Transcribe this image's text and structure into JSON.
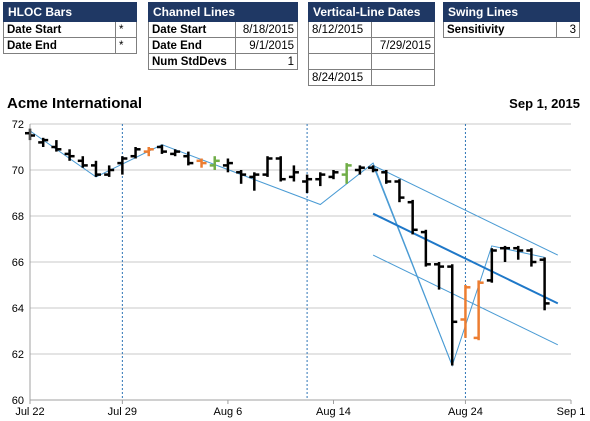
{
  "panels": {
    "hloc": {
      "title": "HLOC Bars",
      "rows": [
        {
          "label": "Date Start",
          "value": "*"
        },
        {
          "label": "Date End",
          "value": "*"
        }
      ]
    },
    "channel": {
      "title": "Channel Lines",
      "rows": [
        {
          "label": "Date Start",
          "value": "8/18/2015"
        },
        {
          "label": "Date End",
          "value": "9/1/2015"
        },
        {
          "label": "Num StdDevs",
          "value": "1"
        }
      ]
    },
    "vlines": {
      "title": "Vertical-Line Dates",
      "cells": [
        [
          "8/12/2015",
          ""
        ],
        [
          "",
          "7/29/2015"
        ],
        [
          "",
          ""
        ],
        [
          "8/24/2015",
          ""
        ]
      ]
    },
    "swing": {
      "title": "Swing Lines",
      "rows": [
        {
          "label": "Sensitivity",
          "value": "3"
        }
      ]
    }
  },
  "chart": {
    "title": "Acme International",
    "date_label": "Sep 1, 2015"
  },
  "chart_data": {
    "type": "ohlc",
    "ylim": [
      60,
      72
    ],
    "yticks": [
      60,
      62,
      64,
      66,
      68,
      70,
      72
    ],
    "xlabels": [
      {
        "day": 0,
        "label": "Jul 22"
      },
      {
        "day": 7,
        "label": "Jul 29"
      },
      {
        "day": 15,
        "label": "Aug 6"
      },
      {
        "day": 23,
        "label": "Aug 14"
      },
      {
        "day": 33,
        "label": "Aug 24"
      },
      {
        "day": 41,
        "label": "Sep 1"
      }
    ],
    "grid": true,
    "vertical_line_days": [
      7,
      21,
      33
    ],
    "colors": {
      "up": "#000000",
      "down": "#000000",
      "orange": "#ed7d31",
      "green": "#70ad47",
      "trend": "#4a9bd4",
      "channel_mid": "#1f78c8",
      "grid": "#c8c8c8",
      "vline": "#2e75b6"
    },
    "bars": [
      {
        "day": 0,
        "open": 71.6,
        "high": 71.8,
        "low": 71.3,
        "close": 71.5,
        "color": "black"
      },
      {
        "day": 1,
        "open": 71.2,
        "high": 71.4,
        "low": 71.0,
        "close": 71.3,
        "color": "black"
      },
      {
        "day": 2,
        "open": 71.0,
        "high": 71.3,
        "low": 70.8,
        "close": 70.9,
        "color": "black"
      },
      {
        "day": 3,
        "open": 70.7,
        "high": 70.9,
        "low": 70.4,
        "close": 70.6,
        "color": "black"
      },
      {
        "day": 4,
        "open": 70.4,
        "high": 70.6,
        "low": 70.1,
        "close": 70.2,
        "color": "black"
      },
      {
        "day": 5,
        "open": 70.2,
        "high": 70.4,
        "low": 69.7,
        "close": 69.8,
        "color": "black"
      },
      {
        "day": 6,
        "open": 69.8,
        "high": 70.2,
        "low": 69.7,
        "close": 70.0,
        "color": "black"
      },
      {
        "day": 7,
        "open": 70.3,
        "high": 70.6,
        "low": 69.8,
        "close": 70.5,
        "color": "black"
      },
      {
        "day": 8,
        "open": 70.6,
        "high": 71.0,
        "low": 70.5,
        "close": 70.9,
        "color": "black"
      },
      {
        "day": 9,
        "open": 70.8,
        "high": 71.0,
        "low": 70.6,
        "close": 70.9,
        "color": "orange"
      },
      {
        "day": 10,
        "open": 71.0,
        "high": 71.1,
        "low": 70.7,
        "close": 70.8,
        "color": "black"
      },
      {
        "day": 11,
        "open": 70.7,
        "high": 70.9,
        "low": 70.6,
        "close": 70.8,
        "color": "black"
      },
      {
        "day": 12,
        "open": 70.6,
        "high": 70.8,
        "low": 70.2,
        "close": 70.3,
        "color": "black"
      },
      {
        "day": 13,
        "open": 70.4,
        "high": 70.5,
        "low": 70.1,
        "close": 70.3,
        "color": "orange"
      },
      {
        "day": 14,
        "open": 70.2,
        "high": 70.6,
        "low": 70.0,
        "close": 70.4,
        "color": "green"
      },
      {
        "day": 15,
        "open": 70.2,
        "high": 70.5,
        "low": 69.9,
        "close": 70.3,
        "color": "black"
      },
      {
        "day": 16,
        "open": 69.9,
        "high": 70.0,
        "low": 69.4,
        "close": 69.8,
        "color": "black"
      },
      {
        "day": 17,
        "open": 69.7,
        "high": 69.9,
        "low": 69.1,
        "close": 69.8,
        "color": "black"
      },
      {
        "day": 18,
        "open": 69.8,
        "high": 70.6,
        "low": 69.7,
        "close": 70.5,
        "color": "black"
      },
      {
        "day": 19,
        "open": 70.5,
        "high": 70.6,
        "low": 69.5,
        "close": 69.6,
        "color": "black"
      },
      {
        "day": 20,
        "open": 69.7,
        "high": 70.2,
        "low": 69.5,
        "close": 69.9,
        "color": "black"
      },
      {
        "day": 21,
        "open": 69.5,
        "high": 69.8,
        "low": 69.0,
        "close": 69.6,
        "color": "black"
      },
      {
        "day": 22,
        "open": 69.6,
        "high": 69.9,
        "low": 69.3,
        "close": 69.8,
        "color": "black"
      },
      {
        "day": 23,
        "open": 69.7,
        "high": 70.0,
        "low": 69.6,
        "close": 69.9,
        "color": "black"
      },
      {
        "day": 24,
        "open": 69.8,
        "high": 70.3,
        "low": 69.4,
        "close": 70.2,
        "color": "green"
      },
      {
        "day": 25,
        "open": 70.0,
        "high": 70.2,
        "low": 69.8,
        "close": 70.1,
        "color": "black"
      },
      {
        "day": 26,
        "open": 70.1,
        "high": 70.2,
        "low": 69.9,
        "close": 70.0,
        "color": "black"
      },
      {
        "day": 27,
        "open": 69.9,
        "high": 70.0,
        "low": 69.4,
        "close": 69.5,
        "color": "black"
      },
      {
        "day": 28,
        "open": 69.5,
        "high": 69.6,
        "low": 68.6,
        "close": 68.8,
        "color": "black"
      },
      {
        "day": 29,
        "open": 68.6,
        "high": 68.7,
        "low": 67.2,
        "close": 67.4,
        "color": "black"
      },
      {
        "day": 30,
        "open": 67.3,
        "high": 67.4,
        "low": 65.8,
        "close": 65.9,
        "color": "black"
      },
      {
        "day": 31,
        "open": 65.9,
        "high": 66.0,
        "low": 64.8,
        "close": 65.8,
        "color": "black"
      },
      {
        "day": 32,
        "open": 65.8,
        "high": 65.9,
        "low": 61.5,
        "close": 63.4,
        "color": "black"
      },
      {
        "day": 33,
        "open": 63.5,
        "high": 65.0,
        "low": 62.7,
        "close": 64.9,
        "color": "orange"
      },
      {
        "day": 34,
        "open": 62.7,
        "high": 65.2,
        "low": 62.6,
        "close": 65.1,
        "color": "orange"
      },
      {
        "day": 35,
        "open": 65.2,
        "high": 66.6,
        "low": 65.1,
        "close": 66.5,
        "color": "black"
      },
      {
        "day": 36,
        "open": 66.6,
        "high": 66.7,
        "low": 66.0,
        "close": 66.6,
        "color": "black"
      },
      {
        "day": 37,
        "open": 66.6,
        "high": 66.7,
        "low": 66.1,
        "close": 66.5,
        "color": "black"
      },
      {
        "day": 38,
        "open": 66.5,
        "high": 66.6,
        "low": 65.8,
        "close": 66.0,
        "color": "black"
      },
      {
        "day": 39,
        "open": 66.1,
        "high": 66.2,
        "low": 63.9,
        "close": 64.2,
        "color": "black"
      }
    ],
    "swing_lines": [
      [
        {
          "day": 0,
          "value": 71.7
        },
        {
          "day": 5,
          "value": 69.7
        },
        {
          "day": 10,
          "value": 71.1
        },
        {
          "day": 22,
          "value": 68.5
        },
        {
          "day": 26,
          "value": 70.3
        },
        {
          "day": 32,
          "value": 61.5
        },
        {
          "day": 35,
          "value": 66.7
        },
        {
          "day": 39,
          "value": 66.2
        }
      ]
    ],
    "trend_lines": [
      [
        {
          "day": 26,
          "value": 70.2
        },
        {
          "day": 32,
          "value": 61.5
        }
      ],
      [
        {
          "day": 26,
          "value": 70.2
        },
        {
          "day": 40,
          "value": 66.3
        }
      ],
      [
        {
          "day": 26,
          "value": 66.3
        },
        {
          "day": 40,
          "value": 62.4
        }
      ]
    ],
    "channel_mid": [
      {
        "day": 26,
        "value": 68.1
      },
      {
        "day": 40,
        "value": 64.2
      }
    ]
  }
}
